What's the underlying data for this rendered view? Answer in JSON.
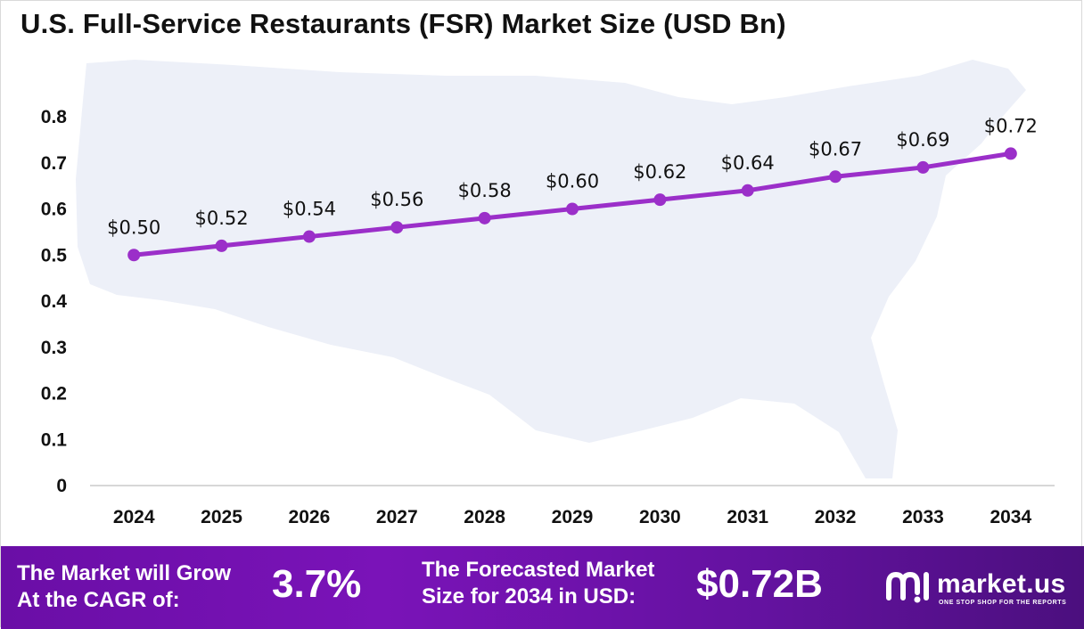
{
  "title": "U.S. Full-Service Restaurants (FSR) Market Size (USD Bn)",
  "colors": {
    "line": "#9b2fc9",
    "marker": "#9b2fc9",
    "axis": "#bfbfbf",
    "map": "#edf0f8",
    "footer_start": "#6a0ea6",
    "footer_end": "#4b0f7e"
  },
  "chart_data": {
    "type": "line",
    "title": "U.S. Full-Service Restaurants (FSR) Market Size (USD Bn)",
    "xlabel": "",
    "ylabel": "",
    "categories": [
      "2024",
      "2025",
      "2026",
      "2027",
      "2028",
      "2029",
      "2030",
      "2031",
      "2032",
      "2033",
      "2034"
    ],
    "values": [
      0.5,
      0.52,
      0.54,
      0.56,
      0.58,
      0.6,
      0.62,
      0.64,
      0.67,
      0.69,
      0.72
    ],
    "data_labels": [
      "$0.50",
      "$0.52",
      "$0.54",
      "$0.56",
      "$0.58",
      "$0.60",
      "$0.62",
      "$0.64",
      "$0.67",
      "$0.69",
      "$0.72"
    ],
    "ylim": [
      0,
      0.8
    ],
    "yticks": [
      "0",
      "0.1",
      "0.2",
      "0.3",
      "0.4",
      "0.5",
      "0.6",
      "0.7",
      "0.8"
    ],
    "grid": false,
    "legend": "none"
  },
  "footer": {
    "cagr_label_line1": "The Market will Grow",
    "cagr_label_line2": "At the CAGR of:",
    "cagr_value": "3.7%",
    "forecast_label_line1": "The Forecasted Market",
    "forecast_label_line2": "Size for 2034 in USD:",
    "forecast_value": "$0.72B",
    "logo_name": "market.us",
    "logo_tagline": "ONE STOP SHOP FOR THE REPORTS"
  }
}
